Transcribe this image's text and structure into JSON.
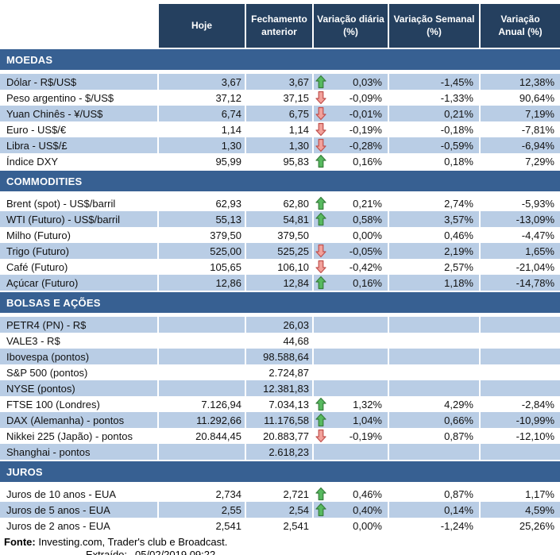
{
  "header": {
    "columns": [
      "Hoje",
      "Fechamento\nanterior",
      "Variação diária\n(%)",
      "Variação Semanal\n(%)",
      "Variação\nAnual (%)"
    ]
  },
  "sections": [
    {
      "title": "MOEDAS",
      "rows": [
        {
          "label": "Dólar - R$/US$",
          "hoje": "3,67",
          "fechamento": "3,67",
          "arrow": "up",
          "diaria": "0,03%",
          "semanal": "-1,45%",
          "anual": "12,38%"
        },
        {
          "label": "Peso argentino - $/US$",
          "hoje": "37,12",
          "fechamento": "37,15",
          "arrow": "down",
          "diaria": "-0,09%",
          "semanal": "-1,33%",
          "anual": "90,64%"
        },
        {
          "label": "Yuan Chinês - ¥/US$",
          "hoje": "6,74",
          "fechamento": "6,75",
          "arrow": "down",
          "diaria": "-0,01%",
          "semanal": "0,21%",
          "anual": "7,19%"
        },
        {
          "label": "Euro - US$/€",
          "hoje": "1,14",
          "fechamento": "1,14",
          "arrow": "down",
          "diaria": "-0,19%",
          "semanal": "-0,18%",
          "anual": "-7,81%"
        },
        {
          "label": "Libra - US$/£",
          "hoje": "1,30",
          "fechamento": "1,30",
          "arrow": "down",
          "diaria": "-0,28%",
          "semanal": "-0,59%",
          "anual": "-6,94%"
        },
        {
          "label": "Índice DXY",
          "hoje": "95,99",
          "fechamento": "95,83",
          "arrow": "up",
          "diaria": "0,16%",
          "semanal": "0,18%",
          "anual": "7,29%"
        }
      ]
    },
    {
      "title": "COMMODITIES",
      "rows": [
        {
          "label": "Brent (spot) - US$/barril",
          "hoje": "62,93",
          "fechamento": "62,80",
          "arrow": "up",
          "diaria": "0,21%",
          "semanal": "2,74%",
          "anual": "-5,93%"
        },
        {
          "label": "WTI (Futuro) - US$/barril",
          "hoje": "55,13",
          "fechamento": "54,81",
          "arrow": "up",
          "diaria": "0,58%",
          "semanal": "3,57%",
          "anual": "-13,09%"
        },
        {
          "label": "Milho (Futuro)",
          "hoje": "379,50",
          "fechamento": "379,50",
          "arrow": "none",
          "diaria": "0,00%",
          "semanal": "0,46%",
          "anual": "-4,47%"
        },
        {
          "label": "Trigo (Futuro)",
          "hoje": "525,00",
          "fechamento": "525,25",
          "arrow": "down",
          "diaria": "-0,05%",
          "semanal": "2,19%",
          "anual": "1,65%"
        },
        {
          "label": "Café (Futuro)",
          "hoje": "105,65",
          "fechamento": "106,10",
          "arrow": "down",
          "diaria": "-0,42%",
          "semanal": "2,57%",
          "anual": "-21,04%"
        },
        {
          "label": "Açúcar (Futuro)",
          "hoje": "12,86",
          "fechamento": "12,84",
          "arrow": "up",
          "diaria": "0,16%",
          "semanal": "1,18%",
          "anual": "-14,78%"
        }
      ]
    },
    {
      "title": "BOLSAS E AÇÕES",
      "rows": [
        {
          "label": "PETR4 (PN) - R$",
          "hoje": "",
          "fechamento": "26,03",
          "arrow": "none",
          "diaria": "",
          "semanal": "",
          "anual": ""
        },
        {
          "label": "VALE3 - R$",
          "hoje": "",
          "fechamento": "44,68",
          "arrow": "none",
          "diaria": "",
          "semanal": "",
          "anual": ""
        },
        {
          "label": "Ibovespa (pontos)",
          "hoje": "",
          "fechamento": "98.588,64",
          "arrow": "none",
          "diaria": "",
          "semanal": "",
          "anual": ""
        },
        {
          "label": "S&P 500 (pontos)",
          "hoje": "",
          "fechamento": "2.724,87",
          "arrow": "none",
          "diaria": "",
          "semanal": "",
          "anual": ""
        },
        {
          "label": "NYSE (pontos)",
          "hoje": "",
          "fechamento": "12.381,83",
          "arrow": "none",
          "diaria": "",
          "semanal": "",
          "anual": ""
        },
        {
          "label": "FTSE 100 (Londres)",
          "hoje": "7.126,94",
          "fechamento": "7.034,13",
          "arrow": "up",
          "diaria": "1,32%",
          "semanal": "4,29%",
          "anual": "-2,84%"
        },
        {
          "label": "DAX (Alemanha) - pontos",
          "hoje": "11.292,66",
          "fechamento": "11.176,58",
          "arrow": "up",
          "diaria": "1,04%",
          "semanal": "0,66%",
          "anual": "-10,99%"
        },
        {
          "label": "Nikkei 225 (Japão) - pontos",
          "hoje": "20.844,45",
          "fechamento": "20.883,77",
          "arrow": "down",
          "diaria": "-0,19%",
          "semanal": "0,87%",
          "anual": "-12,10%"
        },
        {
          "label": "Shanghai - pontos",
          "hoje": "",
          "fechamento": "2.618,23",
          "arrow": "none",
          "diaria": "",
          "semanal": "",
          "anual": ""
        }
      ]
    },
    {
      "title": "JUROS",
      "rows": [
        {
          "label": "Juros de 10 anos - EUA",
          "hoje": "2,734",
          "fechamento": "2,721",
          "arrow": "up",
          "diaria": "0,46%",
          "semanal": "0,87%",
          "anual": "1,17%"
        },
        {
          "label": "Juros de 5 anos - EUA",
          "hoje": "2,55",
          "fechamento": "2,54",
          "arrow": "up",
          "diaria": "0,40%",
          "semanal": "0,14%",
          "anual": "4,59%"
        },
        {
          "label": "Juros de 2 anos - EUA",
          "hoje": "2,541",
          "fechamento": "2,541",
          "arrow": "none",
          "diaria": "0,00%",
          "semanal": "-1,24%",
          "anual": "25,26%"
        }
      ]
    }
  ],
  "footer": {
    "fonte_label": "Fonte:",
    "fonte_text": " Investing.com, Trader's club e Broadcast.",
    "extraido_label": "Extraído:",
    "extraido_value": "05/02/2019 09:22"
  },
  "colors": {
    "header_bg": "#25405F",
    "section_bg": "#376092",
    "row_blue": "#B9CDE5",
    "row_white": "#FFFFFF",
    "arrow_up_fill": "#57B95F",
    "arrow_up_stroke": "#377E3C",
    "arrow_down_fill": "#F2A19A",
    "arrow_down_stroke": "#C0504D"
  },
  "icons": {
    "up": "up-arrow-icon",
    "down": "down-arrow-icon"
  }
}
